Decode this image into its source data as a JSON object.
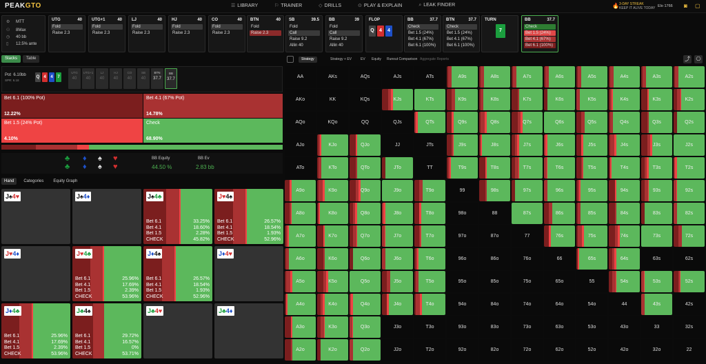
{
  "app": {
    "logo_a": "PEAK",
    "logo_b": "GTO",
    "streak_line1": "3-DAY STREAK",
    "streak_line2": "KEEP IT ALIVE TODAY",
    "elo": "Elo 1766"
  },
  "nav": [
    "LIBRARY",
    "TRAINER",
    "DRILLS",
    "PLAY & EXPLAIN",
    "LEAK FINDER"
  ],
  "game": {
    "type": "MTT",
    "players": "8Max",
    "depth": "40 bb",
    "ante": "12.5% ante"
  },
  "actions": [
    {
      "pos": "UTG",
      "stack": "40",
      "opts": [
        {
          "l": "Fold",
          "s": "sel"
        },
        {
          "l": "Raise 2.3",
          "s": ""
        }
      ]
    },
    {
      "pos": "UTG+1",
      "stack": "40",
      "opts": [
        {
          "l": "Fold",
          "s": "sel"
        },
        {
          "l": "Raise 2.3",
          "s": ""
        }
      ]
    },
    {
      "pos": "LJ",
      "stack": "40",
      "opts": [
        {
          "l": "Fold",
          "s": "sel"
        },
        {
          "l": "Raise 2.3",
          "s": ""
        }
      ]
    },
    {
      "pos": "HJ",
      "stack": "40",
      "opts": [
        {
          "l": "Fold",
          "s": "sel"
        },
        {
          "l": "Raise 2.3",
          "s": ""
        }
      ]
    },
    {
      "pos": "CO",
      "stack": "40",
      "opts": [
        {
          "l": "Fold",
          "s": "sel"
        },
        {
          "l": "Raise 2.3",
          "s": ""
        }
      ]
    },
    {
      "pos": "BTN",
      "stack": "40",
      "opts": [
        {
          "l": "Fold",
          "s": ""
        },
        {
          "l": "Raise 2.3",
          "s": "selr"
        }
      ]
    },
    {
      "pos": "SB",
      "stack": "39.5",
      "opts": [
        {
          "l": "Fold",
          "s": ""
        },
        {
          "l": "Call",
          "s": "sel"
        },
        {
          "l": "Raise 9.2",
          "s": ""
        },
        {
          "l": "Allin 40",
          "s": ""
        }
      ]
    },
    {
      "pos": "BB",
      "stack": "39",
      "opts": [
        {
          "l": "Fold",
          "s": ""
        },
        {
          "l": "Call",
          "s": "sel"
        },
        {
          "l": "Raise 9.2",
          "s": ""
        },
        {
          "l": "Allin 40",
          "s": ""
        }
      ]
    }
  ],
  "flop": {
    "label": "FLOP",
    "cards": [
      {
        "r": "Q",
        "c": "#444"
      },
      {
        "r": "4",
        "c": "#d32f2f"
      },
      {
        "r": "4",
        "c": "#1e50c8"
      }
    ]
  },
  "bb_action": {
    "pos": "BB",
    "stack": "37.7",
    "opts": [
      {
        "l": "Check",
        "s": "sel"
      },
      {
        "l": "Bet 1.5 (24%)",
        "s": ""
      },
      {
        "l": "Bet 4.1 (67%)",
        "s": ""
      },
      {
        "l": "Bet 6.1 (100%)",
        "s": ""
      }
    ]
  },
  "btn_action": {
    "pos": "BTN",
    "stack": "37.7",
    "opts": [
      {
        "l": "Check",
        "s": "sel"
      },
      {
        "l": "Bet 1.5 (24%)",
        "s": ""
      },
      {
        "l": "Bet 4.1 (67%)",
        "s": ""
      },
      {
        "l": "Bet 6.1 (100%)",
        "s": ""
      }
    ]
  },
  "turn": {
    "label": "TURN",
    "card": "7",
    "color": "#1b9e3e"
  },
  "current": {
    "pos": "BB",
    "stack": "37.7",
    "opts": [
      {
        "l": "Check",
        "s": "g"
      },
      {
        "l": "Bet 1.5 (24%)",
        "s": "r1"
      },
      {
        "l": "Bet 4.1 (67%)",
        "s": "r2"
      },
      {
        "l": "Bet 6.1 (100%)",
        "s": "r3"
      }
    ]
  },
  "left_tabs": [
    "Stacks",
    "Table"
  ],
  "pot": {
    "label": "Pot",
    "value": "6.10bb",
    "spr": "SPR: 6.18",
    "board": [
      {
        "r": "Q",
        "c": "#444"
      },
      {
        "r": "4",
        "c": "#d32f2f"
      },
      {
        "r": "4",
        "c": "#1e50c8"
      },
      {
        "r": "7",
        "c": "#1b9e3e"
      }
    ],
    "seats": [
      {
        "n": "UTG",
        "v": "40"
      },
      {
        "n": "UTG+1",
        "v": "40"
      },
      {
        "n": "LJ",
        "v": "40"
      },
      {
        "n": "HJ",
        "v": "40"
      },
      {
        "n": "CO",
        "v": "40"
      },
      {
        "n": "SB",
        "v": "40"
      },
      {
        "n": "BTN",
        "v": "37.7"
      },
      {
        "n": "BB",
        "v": "37.7"
      }
    ]
  },
  "strategy": [
    {
      "label": "Bet 6.1 (100% Pot)",
      "pct": "12.22%",
      "color": "#7b1e1e"
    },
    {
      "label": "Bet 4.1 (67% Pot)",
      "pct": "14.78%",
      "color": "#a93232"
    },
    {
      "label": "Bet 1.5 (24% Pot)",
      "pct": "4.10%",
      "color": "#ef4444"
    },
    {
      "label": "Check",
      "pct": "68.90%",
      "color": "#5cb85c"
    }
  ],
  "freq": [
    0.1222,
    0.1478,
    0.041,
    0.689
  ],
  "equity": {
    "eq_label": "BB Equity",
    "eq_value": "44.50 %",
    "ev_label": "BB Ev",
    "ev_value": "2.83 bb"
  },
  "hand_tabs": [
    "Hand",
    "Categories",
    "Equity Graph"
  ],
  "hands": [
    {
      "cards": [
        {
          "r": "J",
          "s": "♠",
          "c": "#111"
        },
        {
          "r": "4",
          "s": "♥",
          "c": "#d32f2f"
        }
      ],
      "stats": null
    },
    {
      "cards": [
        {
          "r": "J",
          "s": "♠",
          "c": "#111"
        },
        {
          "r": "4",
          "s": "♦",
          "c": "#1e50c8"
        }
      ],
      "stats": null
    },
    {
      "cards": [
        {
          "r": "J",
          "s": "♠",
          "c": "#111"
        },
        {
          "r": "4",
          "s": "♣",
          "c": "#1b9e3e"
        }
      ],
      "stats": [
        {
          "l": "Bet 6.1",
          "v": "33.25%"
        },
        {
          "l": "Bet 4.1",
          "v": "18.60%"
        },
        {
          "l": "Bet 1.5",
          "v": "2.28%"
        },
        {
          "l": "CHECK",
          "v": "45.82%"
        }
      ]
    },
    {
      "cards": [
        {
          "r": "J",
          "s": "♥",
          "c": "#d32f2f"
        },
        {
          "r": "4",
          "s": "♠",
          "c": "#111"
        }
      ],
      "stats": [
        {
          "l": "Bet 6.1",
          "v": "26.57%"
        },
        {
          "l": "Bet 4.1",
          "v": "18.54%"
        },
        {
          "l": "Bet 1.5",
          "v": "1.93%"
        },
        {
          "l": "CHECK",
          "v": "52.96%"
        }
      ]
    },
    {
      "cards": [
        {
          "r": "J",
          "s": "♥",
          "c": "#d32f2f"
        },
        {
          "r": "4",
          "s": "♦",
          "c": "#1e50c8"
        }
      ],
      "stats": null
    },
    {
      "cards": [
        {
          "r": "J",
          "s": "♥",
          "c": "#d32f2f"
        },
        {
          "r": "4",
          "s": "♣",
          "c": "#1b9e3e"
        }
      ],
      "stats": [
        {
          "l": "Bet 6.1",
          "v": "25.96%"
        },
        {
          "l": "Bet 4.1",
          "v": "17.69%"
        },
        {
          "l": "Bet 1.5",
          "v": "2.39%"
        },
        {
          "l": "CHECK",
          "v": "53.96%"
        }
      ]
    },
    {
      "cards": [
        {
          "r": "J",
          "s": "♦",
          "c": "#1e50c8"
        },
        {
          "r": "4",
          "s": "♠",
          "c": "#111"
        }
      ],
      "stats": [
        {
          "l": "Bet 6.1",
          "v": "26.57%"
        },
        {
          "l": "Bet 4.1",
          "v": "18.54%"
        },
        {
          "l": "Bet 1.5",
          "v": "1.93%"
        },
        {
          "l": "CHECK",
          "v": "52.96%"
        }
      ]
    },
    {
      "cards": [
        {
          "r": "J",
          "s": "♦",
          "c": "#1e50c8"
        },
        {
          "r": "4",
          "s": "♥",
          "c": "#d32f2f"
        }
      ],
      "stats": null
    },
    {
      "cards": [
        {
          "r": "J",
          "s": "♦",
          "c": "#1e50c8"
        },
        {
          "r": "4",
          "s": "♣",
          "c": "#1b9e3e"
        }
      ],
      "stats": [
        {
          "l": "Bet 6.1",
          "v": "25.96%"
        },
        {
          "l": "Bet 4.1",
          "v": "17.69%"
        },
        {
          "l": "Bet 1.5",
          "v": "2.39%"
        },
        {
          "l": "CHECK",
          "v": "53.96%"
        }
      ]
    },
    {
      "cards": [
        {
          "r": "J",
          "s": "♣",
          "c": "#1b9e3e"
        },
        {
          "r": "4",
          "s": "♠",
          "c": "#111"
        }
      ],
      "stats": [
        {
          "l": "Bet 6.1",
          "v": "29.72%"
        },
        {
          "l": "Bet 4.1",
          "v": "16.57%"
        },
        {
          "l": "Bet 1.5",
          "v": "0%"
        },
        {
          "l": "CHECK",
          "v": "53.71%"
        }
      ]
    },
    {
      "cards": [
        {
          "r": "J",
          "s": "♣",
          "c": "#1b9e3e"
        },
        {
          "r": "4",
          "s": "♥",
          "c": "#d32f2f"
        }
      ],
      "stats": null
    },
    {
      "cards": [
        {
          "r": "J",
          "s": "♣",
          "c": "#1b9e3e"
        },
        {
          "r": "4",
          "s": "♦",
          "c": "#1e50c8"
        }
      ],
      "stats": null
    }
  ],
  "right_tabs": [
    "Strategy",
    "Strategy + EV",
    "EV",
    "Equity",
    "Runout Comparison",
    "Aggregate Reports"
  ],
  "colors": {
    "check": "#5cb85c",
    "b15": "#ef4444",
    "b41": "#a93232",
    "b61": "#7b1e1e"
  }
}
